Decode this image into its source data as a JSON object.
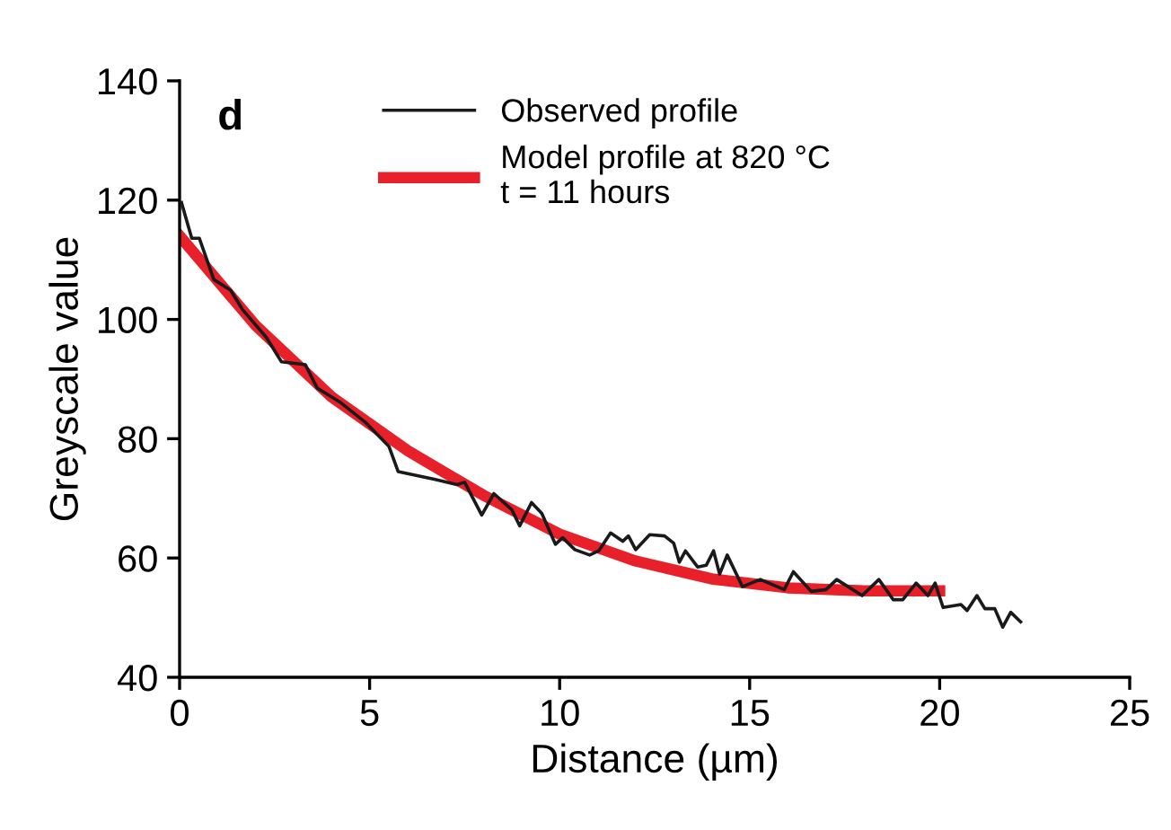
{
  "chart_data": {
    "type": "line",
    "xlabel": "Distance (µm)",
    "ylabel": "Greyscale value",
    "annotations": [
      "d"
    ],
    "xlim": [
      0,
      25
    ],
    "ylim": [
      40,
      140
    ],
    "xticks": [
      0,
      5,
      10,
      15,
      20,
      25
    ],
    "yticks": [
      40,
      60,
      80,
      100,
      120,
      140
    ],
    "grid": false,
    "legend": "top",
    "marker": "none",
    "line_style": "solid",
    "series": [
      {
        "name": "Observed profile",
        "color": "#1a1a1a",
        "x": [
          0.05,
          0.32,
          0.52,
          0.9,
          1.34,
          1.65,
          2.28,
          2.68,
          3.31,
          3.62,
          4.25,
          4.88,
          5.51,
          5.75,
          6.7,
          7.3,
          7.5,
          7.95,
          8.27,
          8.74,
          8.95,
          9.26,
          9.53,
          9.89,
          10.08,
          10.4,
          10.79,
          11.03,
          11.34,
          11.66,
          11.81,
          12.0,
          12.37,
          12.76,
          13.0,
          13.15,
          13.31,
          13.63,
          13.86,
          14.05,
          14.21,
          14.41,
          14.81,
          15.28,
          15.91,
          16.15,
          16.62,
          17.01,
          17.29,
          17.96,
          18.4,
          18.78,
          19.03,
          19.38,
          19.69,
          19.88,
          20.09,
          20.56,
          20.72,
          20.98,
          21.19,
          21.45,
          21.66,
          21.87,
          22.13
        ],
        "values": [
          119.6,
          113.6,
          113.6,
          106.7,
          104.9,
          101.7,
          97,
          92.9,
          92.4,
          88.5,
          86,
          82.8,
          78.7,
          74.5,
          73.2,
          72.3,
          72.7,
          67.2,
          70.8,
          68.1,
          65.4,
          69.3,
          67.5,
          62.3,
          63.4,
          61.4,
          60.5,
          61.2,
          64.2,
          62.8,
          63.7,
          61.4,
          63.9,
          63.7,
          62.5,
          59.3,
          61.2,
          58.5,
          58.8,
          61.2,
          57.3,
          60.5,
          55.2,
          56.4,
          54.7,
          57.7,
          54.4,
          54.7,
          56.4,
          53.7,
          56.4,
          53.0,
          53.0,
          55.8,
          53.7,
          55.8,
          51.7,
          52.2,
          51.2,
          53.7,
          51.5,
          51.5,
          48.4,
          50.9,
          49.3
        ]
      },
      {
        "name": "Model profile at 820 °C\nt = 11 hours",
        "color": "#e8202a",
        "x": [
          0,
          2,
          4,
          6,
          8,
          10,
          12,
          14,
          16,
          18,
          20
        ],
        "values": [
          114,
          99,
          87,
          78,
          70.5,
          64,
          59.5,
          56.5,
          55,
          54.5,
          54.5
        ]
      }
    ]
  }
}
